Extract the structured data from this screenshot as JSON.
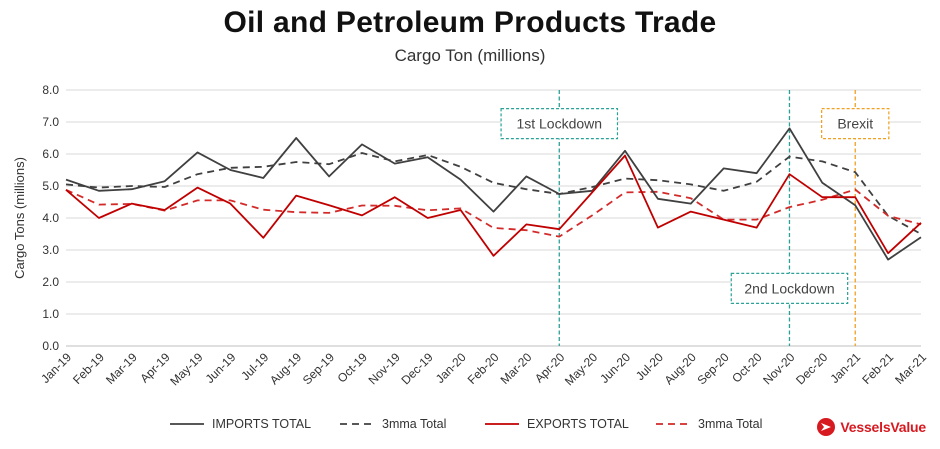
{
  "title": "Oil and Petroleum Products Trade",
  "subtitle": "Cargo Ton (millions)",
  "logo_text": "VesselsValue",
  "logo_icon": "vesselsvalue-logo-icon",
  "chart_data": {
    "type": "line",
    "title": "Oil and Petroleum Products Trade",
    "subtitle": "Cargo Ton (millions)",
    "ylabel": "Cargo Tons (millions)",
    "xlabel": "",
    "ylim": [
      0,
      8
    ],
    "yticks": [
      "0.0",
      "1.0",
      "2.0",
      "3.0",
      "4.0",
      "5.0",
      "6.0",
      "7.0",
      "8.0"
    ],
    "grid": "horizontal",
    "legend_position": "bottom",
    "categories": [
      "Jan-19",
      "Feb-19",
      "Mar-19",
      "Apr-19",
      "May-19",
      "Jun-19",
      "Jul-19",
      "Aug-19",
      "Sep-19",
      "Oct-19",
      "Nov-19",
      "Dec-19",
      "Jan-20",
      "Feb-20",
      "Mar-20",
      "Apr-20",
      "May-20",
      "Jun-20",
      "Jul-20",
      "Aug-20",
      "Sep-20",
      "Oct-20",
      "Nov-20",
      "Dec-20",
      "Jan-21",
      "Feb-21",
      "Mar-21"
    ],
    "series": [
      {
        "name": "IMPORTS TOTAL",
        "color": "#404040",
        "dash": "solid",
        "values": [
          5.2,
          4.85,
          4.9,
          5.15,
          6.05,
          5.5,
          5.25,
          6.5,
          5.3,
          6.3,
          5.7,
          5.9,
          5.2,
          4.2,
          5.3,
          4.75,
          4.85,
          6.1,
          4.6,
          4.45,
          5.55,
          5.4,
          6.8,
          5.1,
          4.4,
          2.7,
          3.4
        ]
      },
      {
        "name": "3mma Total",
        "color": "#404040",
        "dash": "dashed",
        "values": [
          5.05,
          4.95,
          5.0,
          4.97,
          5.37,
          5.57,
          5.6,
          5.75,
          5.68,
          6.03,
          5.77,
          5.97,
          5.6,
          5.1,
          4.9,
          4.75,
          4.97,
          5.23,
          5.18,
          5.05,
          4.85,
          5.13,
          5.92,
          5.77,
          5.43,
          4.07,
          3.5
        ]
      },
      {
        "name": "EXPORTS TOTAL",
        "color": "#c00000",
        "dash": "solid",
        "values": [
          4.88,
          4.0,
          4.45,
          4.25,
          4.95,
          4.45,
          3.38,
          4.7,
          4.4,
          4.08,
          4.65,
          4.0,
          4.25,
          2.82,
          3.8,
          3.65,
          4.8,
          5.95,
          3.7,
          4.2,
          3.95,
          3.7,
          5.37,
          4.65,
          4.65,
          2.9,
          3.85
        ]
      },
      {
        "name": "3mma Total",
        "color": "#d32a2a",
        "dash": "dashed",
        "values": [
          4.88,
          4.42,
          4.44,
          4.23,
          4.55,
          4.55,
          4.26,
          4.18,
          4.16,
          4.39,
          4.38,
          4.24,
          4.3,
          3.69,
          3.62,
          3.42,
          4.08,
          4.8,
          4.82,
          4.62,
          3.95,
          3.95,
          4.34,
          4.57,
          4.89,
          4.07,
          3.8
        ]
      }
    ],
    "annotations": [
      {
        "label": "1st Lockdown",
        "category": "Apr-20",
        "color": "#2aa197",
        "label_y": 6.95
      },
      {
        "label": "2nd Lockdown",
        "category": "Nov-20",
        "color": "#2aa197",
        "label_y": 1.8
      },
      {
        "label": "Brexit",
        "category": "Jan-21",
        "color": "#f0a020",
        "label_y": 6.95
      }
    ]
  }
}
